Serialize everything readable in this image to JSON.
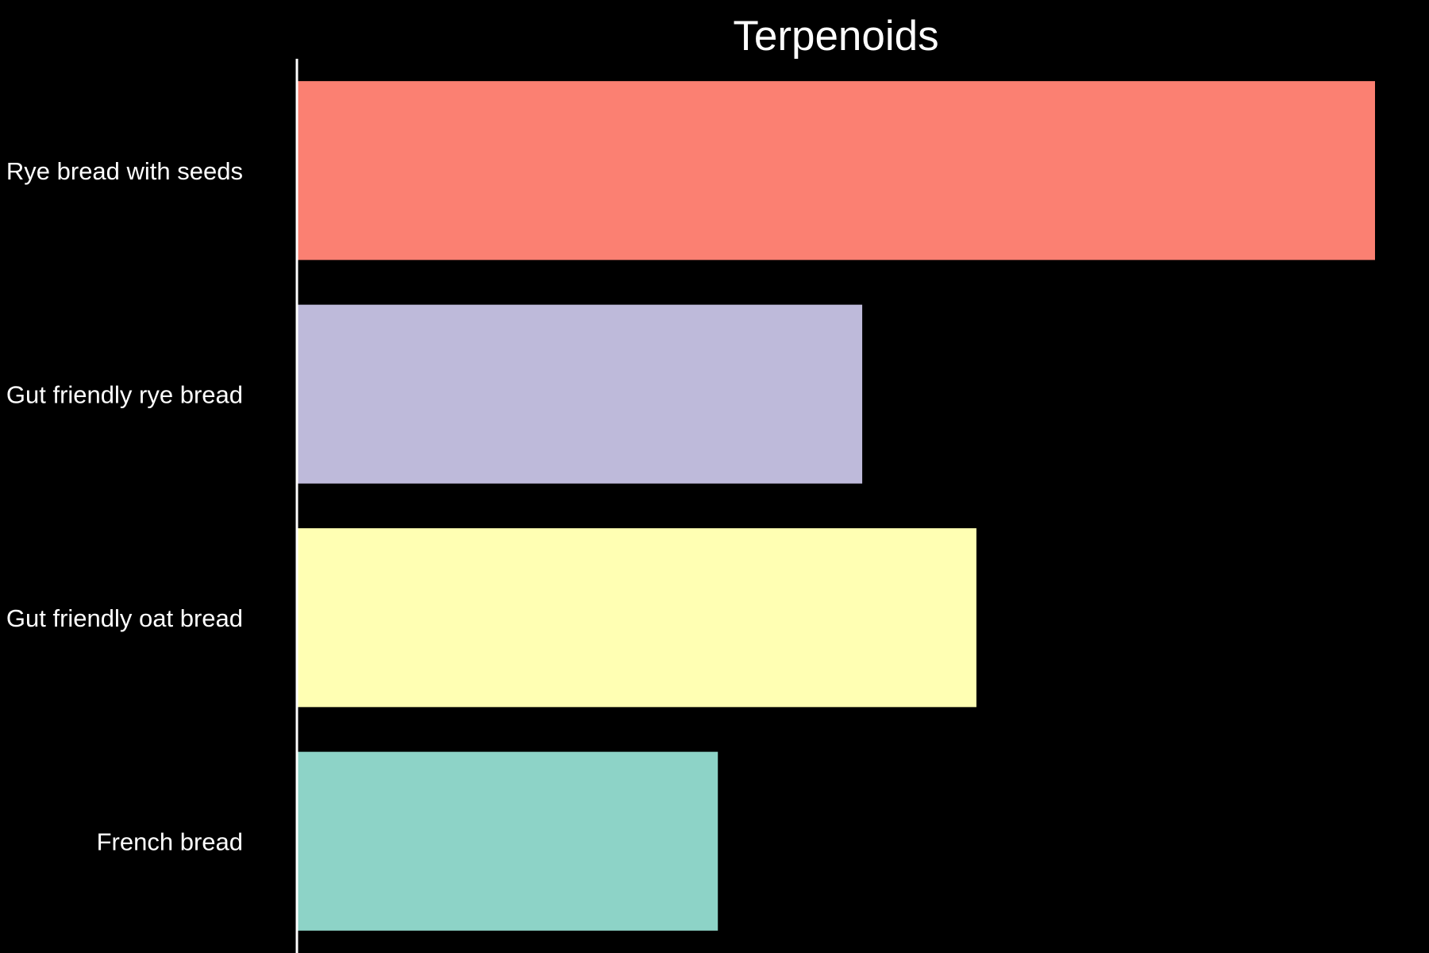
{
  "chart_data": {
    "type": "bar",
    "orientation": "horizontal",
    "title": "Terpenoids",
    "xlabel": "",
    "ylabel": "",
    "categories": [
      "Rye bread with seeds",
      "Gut friendly rye bread",
      "Gut friendly oat bread",
      "French bread"
    ],
    "values": [
      100,
      52.4,
      63,
      39
    ],
    "colors": [
      "#fb8072",
      "#bebada",
      "#ffffb3",
      "#8dd3c7"
    ],
    "xlim": [
      0,
      100
    ],
    "grid": false,
    "legend": "none",
    "background": "#000000",
    "text_color": "#ffffff",
    "axis_color": "#ffffff"
  }
}
